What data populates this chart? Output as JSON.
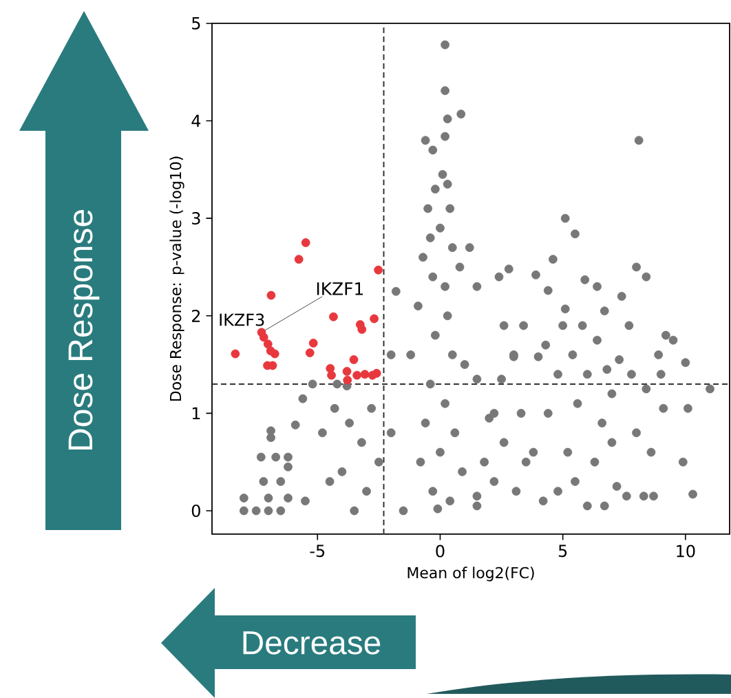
{
  "chart_data": {
    "type": "scatter",
    "xlabel": "Mean of log2(FC)",
    "ylabel": "Dose Response: p-value (-log10)",
    "xlim": [
      -9.3,
      11.8
    ],
    "ylim": [
      -0.24,
      5.0
    ],
    "xticks": [
      -5,
      0,
      5,
      10
    ],
    "yticks": [
      0,
      1,
      2,
      3,
      4,
      5
    ],
    "marker": "circle",
    "ref_lines": [
      {
        "axis": "x",
        "value": -2.3,
        "color": "#333333",
        "line_style": "dashed"
      },
      {
        "axis": "y",
        "value": 1.3,
        "color": "#333333",
        "line_style": "dashed"
      }
    ],
    "annotations": [
      {
        "text": "IKZF1",
        "x": -7.28,
        "y": 1.83
      },
      {
        "text": "IKZF3",
        "x": -7.19,
        "y": 1.78
      },
      "Dose Response",
      "Decrease"
    ],
    "series": [
      {
        "color": "#78787a",
        "x": [
          0.2,
          0.2,
          0.3,
          0.85,
          0.2,
          -0.6,
          -0.3,
          0.1,
          0.3,
          -0.2,
          -0.5,
          0.4,
          0.0,
          -0.4,
          0.5,
          -0.7,
          1.2,
          0.8,
          -0.3,
          0.2,
          -1.8,
          1.5,
          -0.9,
          0.3,
          -0.2,
          0.5,
          -1.2,
          1.0,
          -0.4,
          0.2,
          -0.6,
          0.6,
          0,
          -0.8,
          0.9,
          -0.3,
          0.4,
          -1.5,
          1.5,
          -0.1,
          1.8,
          -2.0,
          -2.0,
          2.2,
          3.5,
          4.2,
          3.0,
          -8.0,
          -7.5,
          -7.0,
          -6.5,
          -8,
          -7,
          -6.2,
          -7.2,
          -6.5,
          -7.3,
          -6.7,
          -6.2,
          -6.9,
          -6.9,
          -6.2,
          -5.9,
          -5.6,
          -5.2,
          -4.8,
          -4.3,
          -3.7,
          -3.2,
          -2.8,
          -5.5,
          -4.5,
          -4.0,
          -3.5,
          -3,
          -2.5,
          -4.2,
          -3.8,
          8.1,
          5.1,
          5.5,
          4.6,
          3.9,
          2.8,
          2.4,
          5.9,
          6.4,
          8.0,
          8.4,
          7.4,
          4.4,
          5.1,
          6.7,
          3.4,
          2.6,
          5.8,
          7.7,
          9.2,
          9.5,
          6.4,
          4.0,
          3.0,
          5.4,
          7.3,
          8.9,
          10.0,
          11.0,
          9.0,
          6.0,
          4.8,
          2.5,
          1.5,
          8.4,
          7.0,
          5.6,
          4.4,
          3.3,
          2.0,
          6.6,
          9.1,
          10.1,
          8.0,
          7.0,
          5.2,
          3.8,
          2.6,
          6.3,
          8.6,
          9.9,
          7.2,
          6.0,
          6.7,
          8.3,
          8.7,
          10.3,
          7.6,
          4.8,
          5.5,
          3.1,
          2.2,
          1.5,
          5.0,
          6.8,
          7.8,
          4.3
        ],
        "values": [
          4.78,
          4.31,
          4.02,
          4.07,
          3.84,
          3.8,
          3.7,
          3.45,
          3.35,
          3.3,
          3.1,
          3.1,
          2.9,
          2.8,
          2.7,
          2.6,
          2.7,
          2.5,
          2.4,
          2.3,
          2.25,
          2.3,
          2.1,
          2.0,
          1.8,
          1.6,
          1.6,
          1.5,
          1.3,
          1.1,
          0.9,
          0.8,
          0.6,
          0.5,
          0.4,
          0.2,
          0.1,
          0.0,
          0.05,
          0.02,
          0.5,
          1.6,
          0.8,
          1.0,
          0.5,
          0.1,
          1.6,
          0.0,
          0.0,
          0.0,
          0.0,
          0.13,
          0.13,
          0.13,
          0.3,
          0.3,
          0.55,
          0.55,
          0.55,
          0.75,
          0.82,
          0.45,
          0.88,
          1.15,
          1.3,
          0.8,
          1.05,
          0.9,
          0.7,
          1.05,
          0.1,
          0.3,
          0.4,
          0.0,
          0.2,
          0.5,
          1.3,
          1.28,
          3.8,
          3.0,
          2.84,
          2.58,
          2.42,
          2.48,
          2.4,
          2.37,
          2.3,
          2.5,
          2.4,
          2.2,
          2.26,
          2.07,
          2.05,
          1.9,
          1.9,
          1.9,
          1.9,
          1.8,
          1.75,
          1.75,
          1.58,
          1.58,
          1.6,
          1.55,
          1.6,
          1.52,
          1.25,
          1.4,
          1.4,
          1.4,
          1.35,
          1.35,
          1.25,
          1.2,
          1.1,
          1.0,
          1.0,
          0.95,
          0.9,
          1.05,
          1.05,
          0.8,
          0.7,
          0.6,
          0.6,
          0.7,
          0.5,
          0.6,
          0.5,
          0.25,
          0.05,
          0.05,
          0.15,
          0.15,
          0.17,
          0.15,
          0.2,
          0.3,
          0.2,
          0.3,
          0.15,
          1.9,
          1.45,
          1.4,
          1.7
        ]
      },
      {
        "color": "#e8383d",
        "x": [
          -5.48,
          -5.76,
          -2.52,
          -6.89,
          -4.35,
          -2.69,
          -3.26,
          -3.19,
          -5.17,
          -5.31,
          -7.28,
          -7.19,
          -7.02,
          -6.91,
          -6.74,
          -8.35,
          -7.04,
          -6.83,
          -3.52,
          -4.48,
          -4.43,
          -3.8,
          -3.78,
          -3.39,
          -3.07,
          -2.76,
          -2.59
        ],
        "values": [
          2.75,
          2.58,
          2.47,
          2.21,
          1.99,
          1.97,
          1.91,
          1.86,
          1.72,
          1.62,
          1.83,
          1.78,
          1.71,
          1.64,
          1.61,
          1.61,
          1.49,
          1.49,
          1.55,
          1.46,
          1.39,
          1.43,
          1.34,
          1.39,
          1.4,
          1.39,
          1.41
        ]
      }
    ]
  }
}
